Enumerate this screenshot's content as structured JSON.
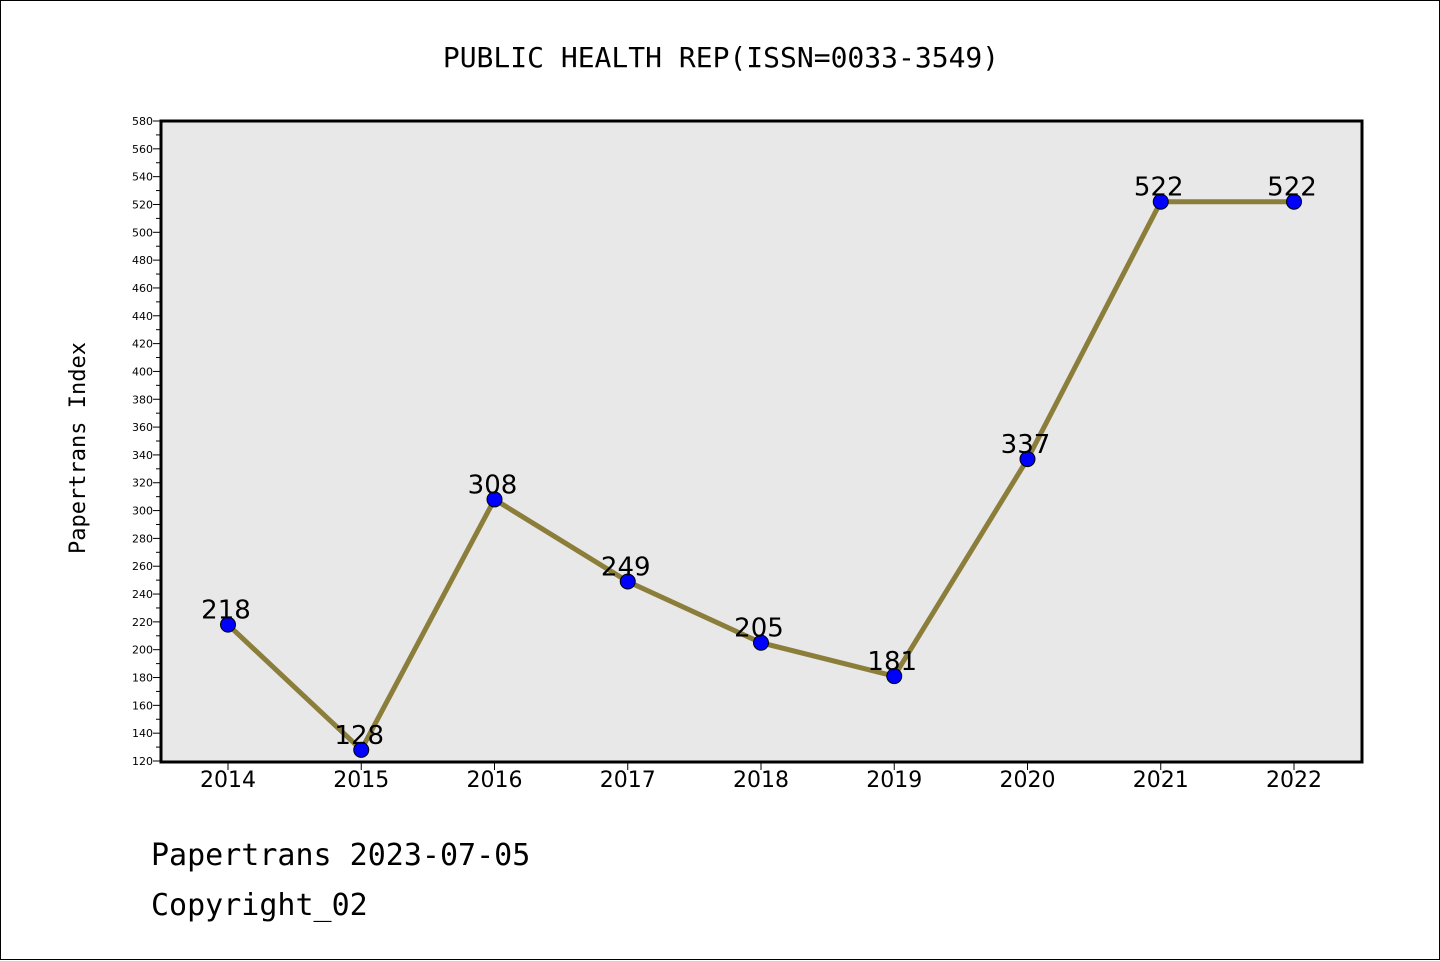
{
  "chart_data": {
    "type": "line",
    "title": "PUBLIC HEALTH REP(ISSN=0033-3549)",
    "ylabel": "Papertrans Index",
    "xlabel": "",
    "categories": [
      "2014",
      "2015",
      "2016",
      "2017",
      "2018",
      "2019",
      "2020",
      "2021",
      "2022"
    ],
    "series": [
      {
        "values": [
          218,
          128,
          308,
          249,
          205,
          181,
          337,
          522,
          522
        ],
        "data_labels": [
          "218",
          "128",
          "308",
          "249",
          "205",
          "181",
          "337",
          "522",
          "522"
        ]
      }
    ],
    "ylim": [
      120,
      580
    ],
    "yticks": [
      "120",
      "140",
      "160",
      "180",
      "200",
      "220",
      "240",
      "260",
      "280",
      "300",
      "320",
      "340",
      "360",
      "380",
      "400",
      "420",
      "440",
      "460",
      "480",
      "500",
      "520",
      "540",
      "560",
      "580"
    ],
    "grid": false,
    "legend": "none",
    "colors": {
      "line": "#8b7d3a",
      "marker": "#0000ff",
      "plot_background": "#e8e8e8"
    }
  },
  "footer": {
    "line1": "Papertrans 2023-07-05",
    "line2": "Copyright_02"
  }
}
